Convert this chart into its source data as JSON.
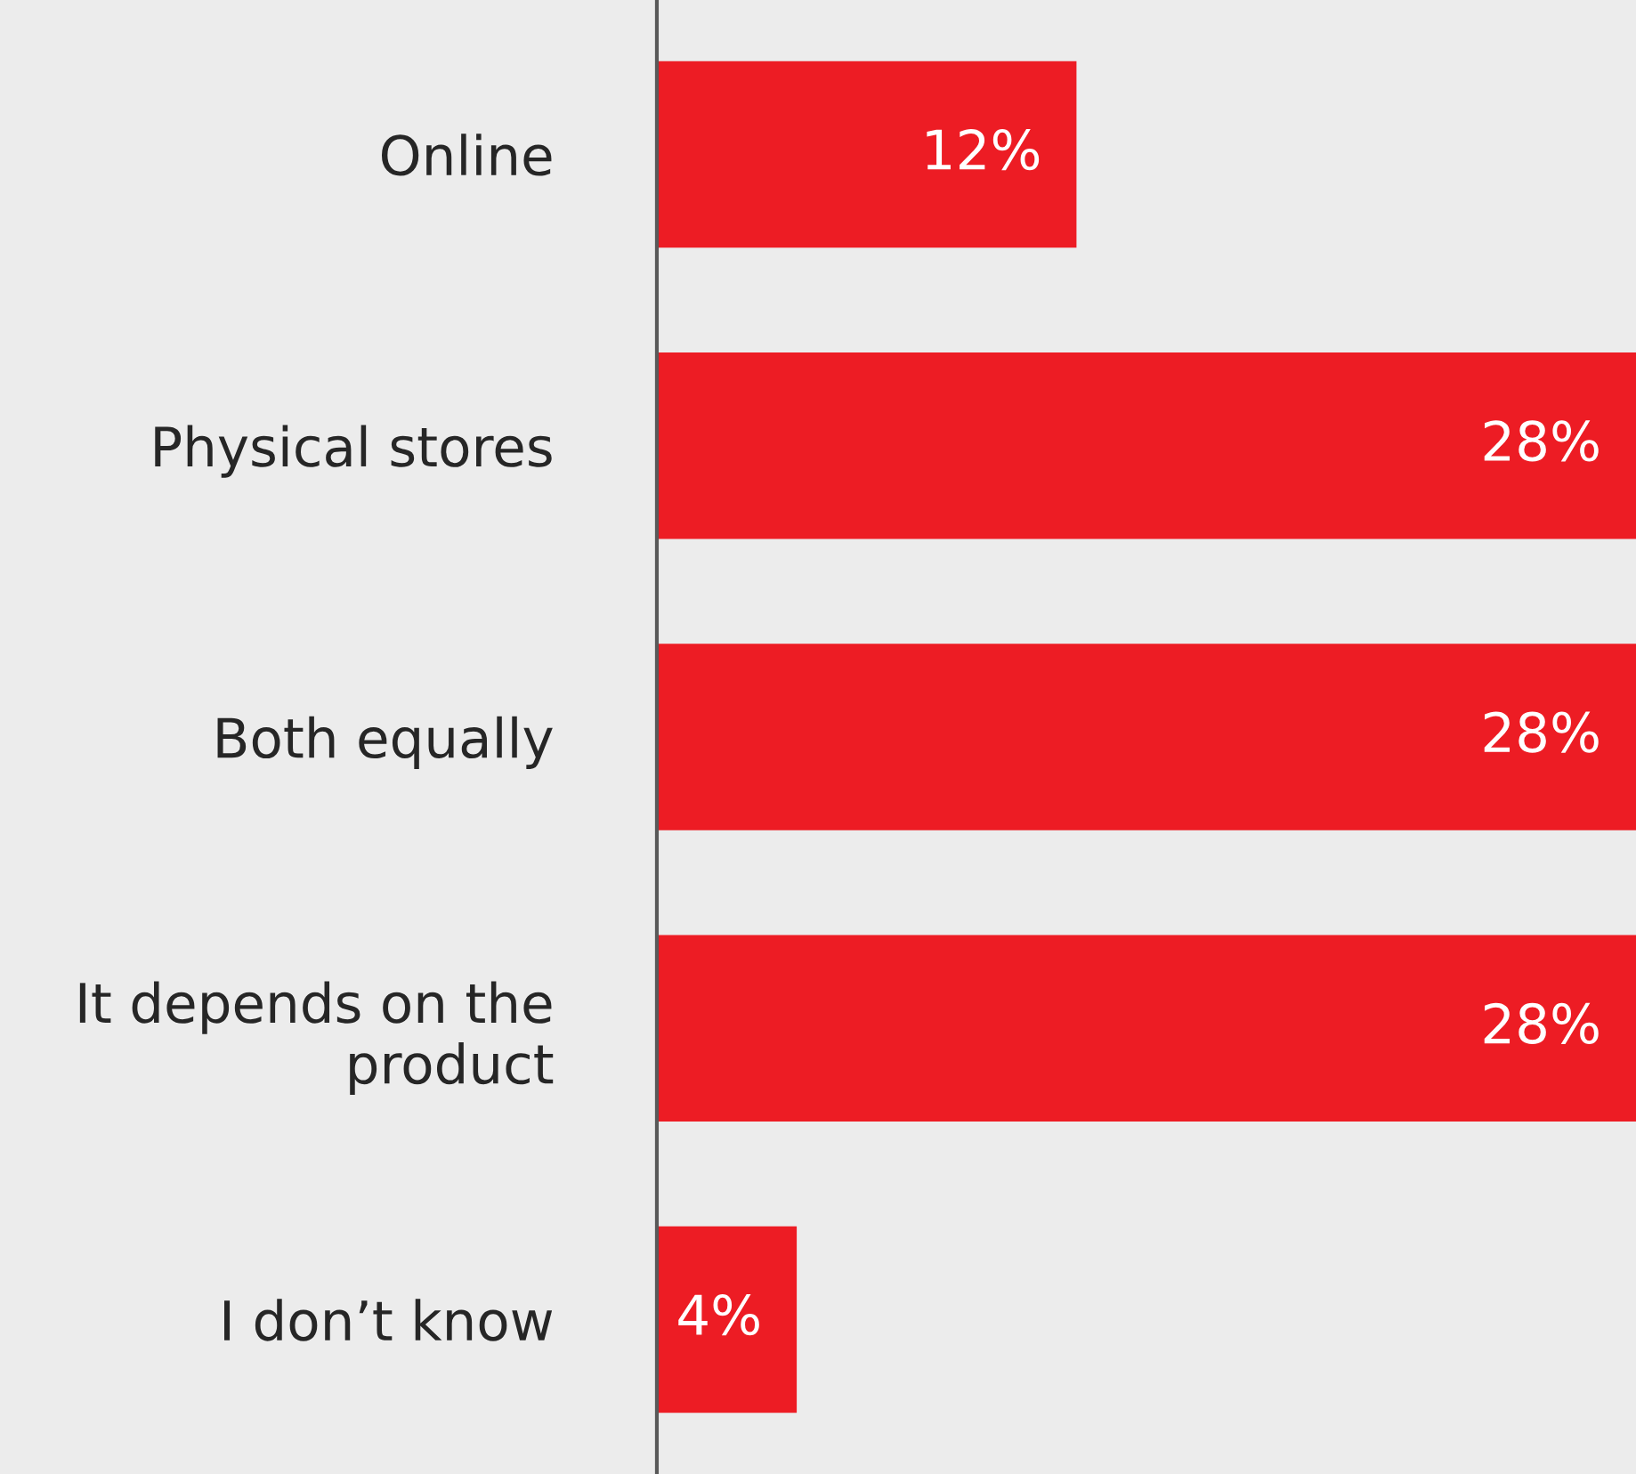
{
  "chart_data": {
    "type": "bar",
    "orientation": "horizontal",
    "categories": [
      "Online",
      "Physical stores",
      "Both equally",
      "It depends on the\nproduct",
      "I don’t know"
    ],
    "values": [
      12,
      28,
      28,
      28,
      4
    ],
    "value_labels": [
      "12%",
      "28%",
      "28%",
      "28%",
      "4%"
    ],
    "color": "#ed1c24",
    "grid": false,
    "legend": false,
    "tick_labels": "y"
  }
}
